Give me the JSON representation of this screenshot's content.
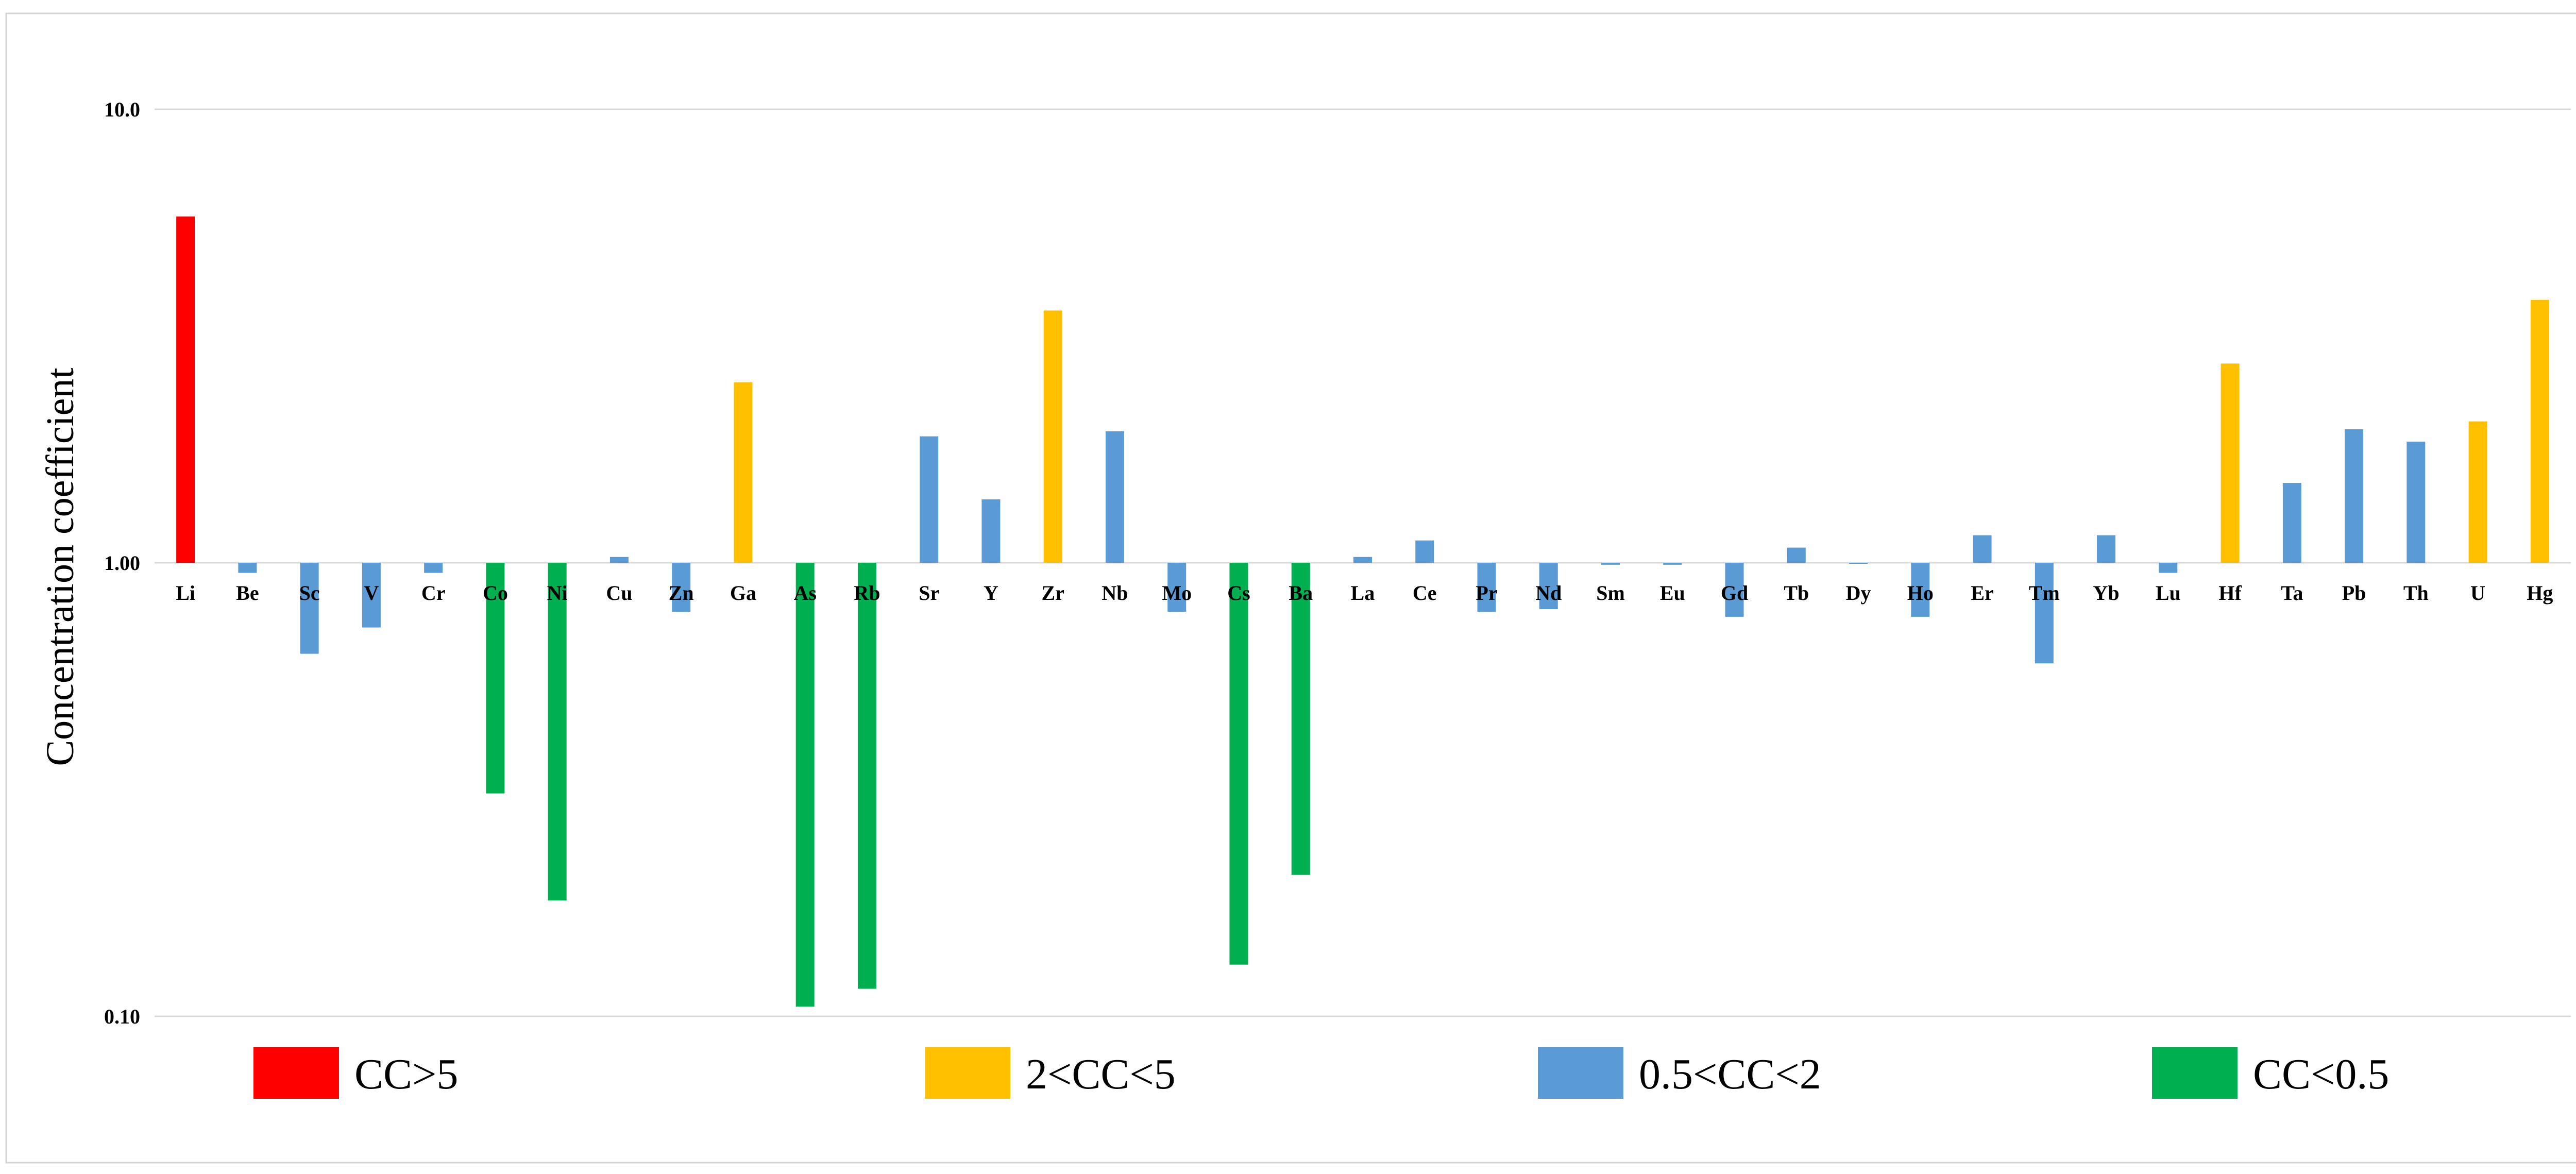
{
  "chart_data": {
    "type": "bar",
    "title": "",
    "xlabel": "",
    "ylabel": "Concentration coefficient",
    "yscale": "log",
    "baseline": 1.0,
    "ylim": [
      0.1,
      10.0
    ],
    "yticks": [
      {
        "value": 10.0,
        "label": "10.0"
      },
      {
        "value": 1.0,
        "label": "1.00"
      },
      {
        "value": 0.1,
        "label": "0.10"
      }
    ],
    "grid": true,
    "legend_position": "bottom",
    "legend": [
      {
        "label": "CC>5",
        "color": "#ff0000"
      },
      {
        "label": "2<CC<5",
        "color": "#ffc000"
      },
      {
        "label": "0.5<CC<2",
        "color": "#5b9bd5"
      },
      {
        "label": "CC<0.5",
        "color": "#00b050"
      }
    ],
    "colors": {
      "gt5": "#ff0000",
      "2to5": "#ffc000",
      "05to2": "#5b9bd5",
      "lt05": "#00b050"
    },
    "categories": [
      "Li",
      "Be",
      "Sc",
      "V",
      "Cr",
      "Co",
      "Ni",
      "Cu",
      "Zn",
      "Ga",
      "As",
      "Rb",
      "Sr",
      "Y",
      "Zr",
      "Nb",
      "Mo",
      "Cs",
      "Ba",
      "La",
      "Ce",
      "Pr",
      "Nd",
      "Sm",
      "Eu",
      "Gd",
      "Tb",
      "Dy",
      "Ho",
      "Er",
      "Tm",
      "Yb",
      "Lu",
      "Hf",
      "Ta",
      "Pb",
      "Th",
      "U",
      "Hg"
    ],
    "values": [
      5.8,
      0.95,
      0.63,
      0.72,
      0.95,
      0.31,
      0.18,
      1.03,
      0.78,
      2.5,
      0.105,
      0.115,
      1.9,
      1.38,
      3.6,
      1.95,
      0.78,
      0.13,
      0.205,
      1.03,
      1.12,
      0.78,
      0.79,
      0.99,
      0.99,
      0.76,
      1.08,
      1.0,
      0.76,
      1.15,
      0.6,
      1.15,
      0.95,
      2.75,
      1.5,
      1.97,
      1.85,
      2.05,
      3.8
    ]
  }
}
